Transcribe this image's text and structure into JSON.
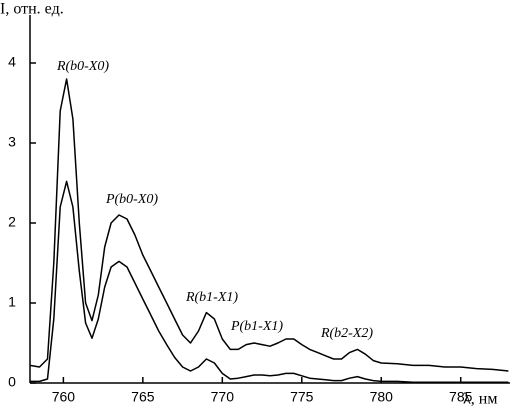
{
  "chart_data": {
    "type": "line",
    "ylabel": "I, отн. ед.",
    "xlabel": "λ, нм",
    "annotations": [
      "R(b0-X0)",
      "P(b0-X0)",
      "R(b1-X1)",
      "P(b1-X1)",
      "R(b2-X2)"
    ],
    "x": [
      757.9,
      758.5,
      759.0,
      759.4,
      759.8,
      760.2,
      760.6,
      761.0,
      761.4,
      761.8,
      762.2,
      762.6,
      763.0,
      763.5,
      764.0,
      764.5,
      765.0,
      765.5,
      766.0,
      766.5,
      767.0,
      767.5,
      768.0,
      768.5,
      769.0,
      769.5,
      770.0,
      770.5,
      771.0,
      771.5,
      772.0,
      772.5,
      773.0,
      773.5,
      774.0,
      774.5,
      775.0,
      775.5,
      776.0,
      776.5,
      777.0,
      777.5,
      778.0,
      778.5,
      779.0,
      779.5,
      780.0,
      781,
      782,
      783,
      784,
      785,
      786,
      787,
      788
    ],
    "series": [
      {
        "color": "#000000",
        "values": [
          0.22,
          0.2,
          0.3,
          1.5,
          3.4,
          3.8,
          3.3,
          2.0,
          1.0,
          0.78,
          1.1,
          1.7,
          2.0,
          2.1,
          2.05,
          1.85,
          1.6,
          1.4,
          1.2,
          1.0,
          0.8,
          0.6,
          0.5,
          0.65,
          0.88,
          0.8,
          0.55,
          0.42,
          0.42,
          0.48,
          0.5,
          0.48,
          0.46,
          0.5,
          0.55,
          0.55,
          0.48,
          0.42,
          0.38,
          0.34,
          0.3,
          0.3,
          0.38,
          0.42,
          0.36,
          0.28,
          0.25,
          0.24,
          0.22,
          0.22,
          0.2,
          0.2,
          0.18,
          0.17,
          0.15
        ]
      },
      {
        "color": "#000000",
        "values": [
          0.02,
          0.02,
          0.05,
          0.8,
          2.2,
          2.52,
          2.2,
          1.4,
          0.75,
          0.56,
          0.8,
          1.2,
          1.45,
          1.52,
          1.45,
          1.25,
          1.05,
          0.85,
          0.65,
          0.48,
          0.32,
          0.2,
          0.15,
          0.2,
          0.3,
          0.25,
          0.12,
          0.05,
          0.06,
          0.08,
          0.1,
          0.1,
          0.09,
          0.1,
          0.12,
          0.12,
          0.09,
          0.06,
          0.05,
          0.04,
          0.03,
          0.03,
          0.06,
          0.08,
          0.05,
          0.03,
          0.02,
          0.02,
          0.01,
          0.01,
          0.01,
          0.01,
          0.01,
          0.01,
          0.01
        ]
      }
    ],
    "xlim": [
      757.9,
      788.1
    ],
    "xticks": [
      760,
      765,
      770,
      775,
      780,
      785
    ],
    "ylim": [
      0,
      4.6
    ],
    "yticks": [
      0,
      1,
      2,
      3,
      4
    ]
  }
}
